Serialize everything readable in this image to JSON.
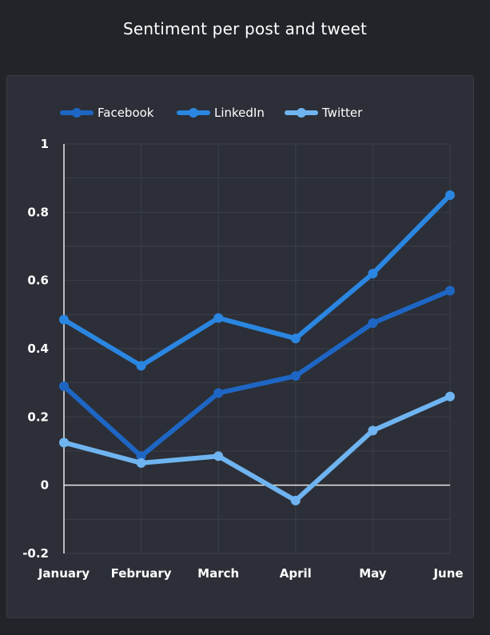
{
  "chart_data": {
    "type": "line",
    "title": "Sentiment per post and tweet",
    "categories": [
      "January",
      "February",
      "March",
      "April",
      "May",
      "June"
    ],
    "series": [
      {
        "name": "Facebook",
        "color": "#1e66c4",
        "values": [
          0.29,
          0.085,
          0.27,
          0.32,
          0.475,
          0.57
        ]
      },
      {
        "name": "LinkedIn",
        "color": "#2a86e0",
        "values": [
          0.485,
          0.35,
          0.49,
          0.43,
          0.62,
          0.85
        ]
      },
      {
        "name": "Twitter",
        "color": "#6fb4f0",
        "values": [
          0.125,
          0.065,
          0.085,
          -0.045,
          0.16,
          0.26
        ]
      }
    ],
    "y_ticks": [
      "-0.2",
      "0",
      "0.2",
      "0.4",
      "0.6",
      "0.8",
      "1"
    ],
    "ylim": [
      -0.2,
      1
    ],
    "grid": true,
    "legend_position": "top-left"
  }
}
